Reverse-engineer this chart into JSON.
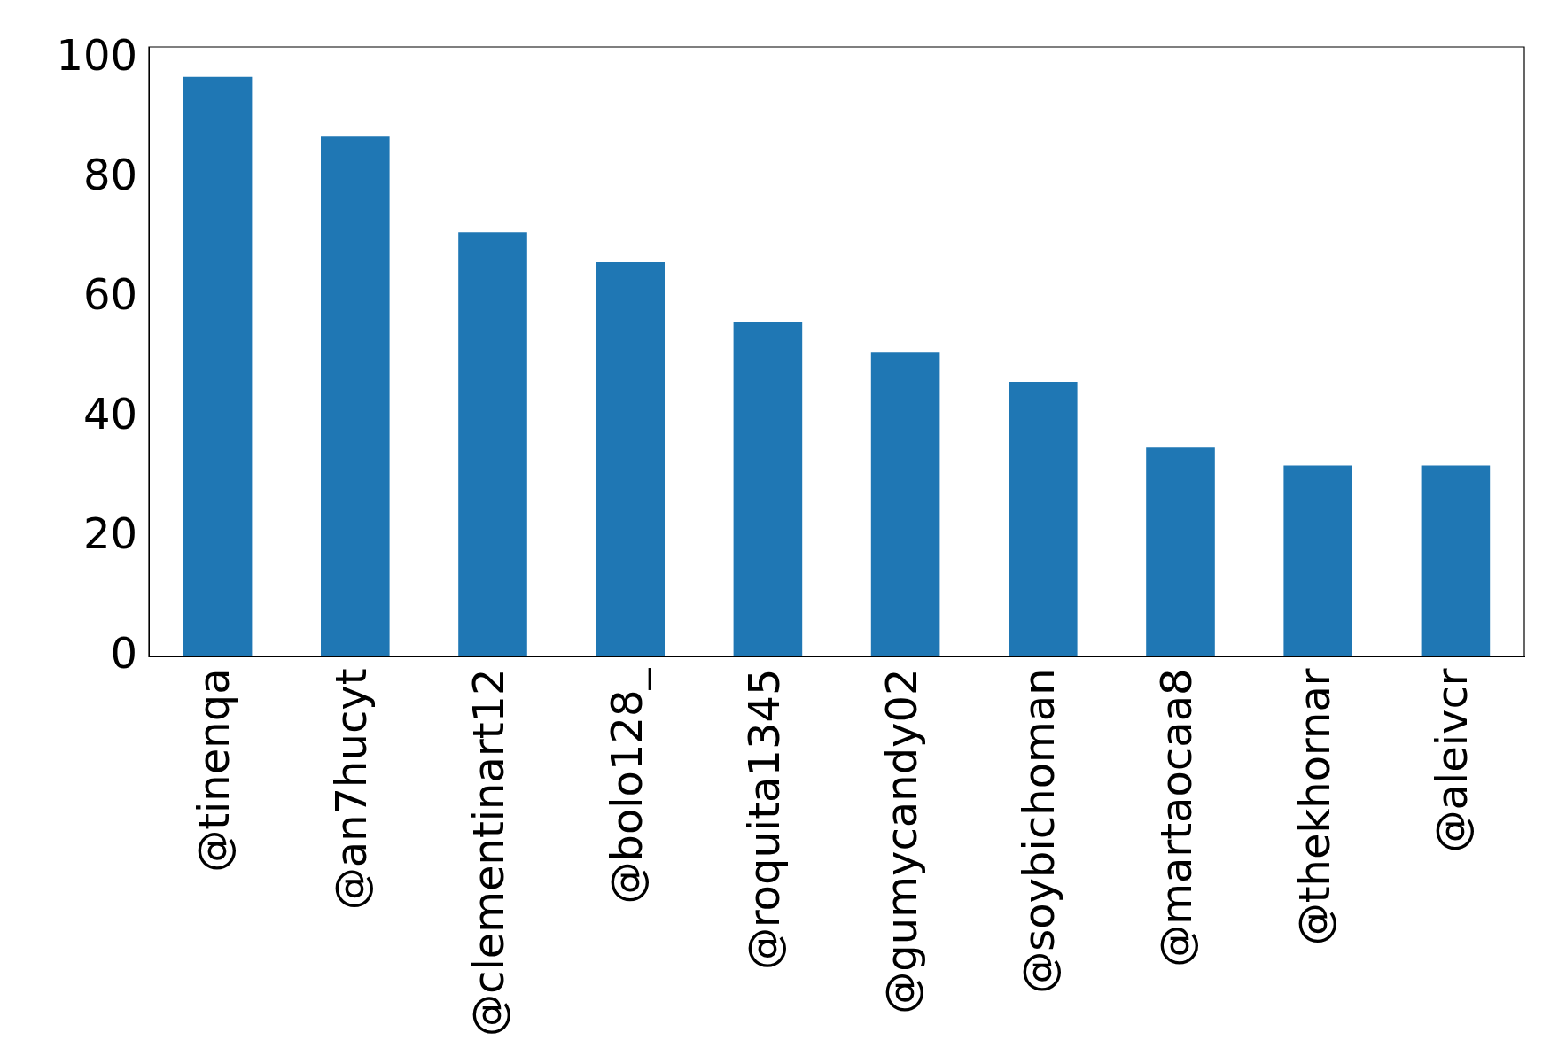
{
  "chart_data": {
    "type": "bar",
    "categories": [
      "@tinenqa",
      "@an7hucyt",
      "@clementinart12",
      "@bolo128_",
      "@roquita1345",
      "@gumycandy02",
      "@soybichoman",
      "@martaocaa8",
      "@thekhornar",
      "@aleivcr"
    ],
    "values": [
      97,
      87,
      71,
      66,
      56,
      51,
      46,
      35,
      32,
      32
    ],
    "color": "#1f77b4",
    "ylim": [
      0,
      102
    ],
    "yticks": [
      0,
      20,
      40,
      60,
      80,
      100
    ],
    "grid": false,
    "legend": false
  }
}
